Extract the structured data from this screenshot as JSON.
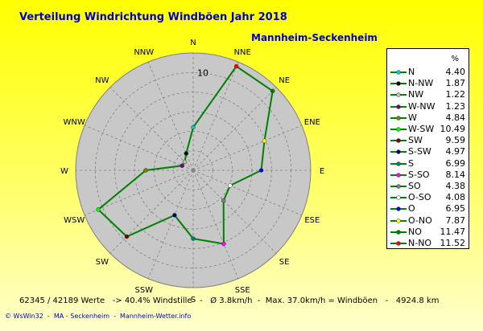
{
  "chart_data": {
    "type": "radar",
    "title": "Verteilung Windrichtung Windböen  Jahr 2018",
    "subtitle": "Mannheim-Seckenheim",
    "radial_max": 12,
    "radial_ticks": [
      10
    ],
    "radial_tick_labels": [
      "10"
    ],
    "grid": true,
    "legend_position": "right",
    "legend_unit": "%",
    "directions": [
      "N",
      "NNE",
      "NE",
      "ENE",
      "E",
      "ESE",
      "SE",
      "SSE",
      "S",
      "SSW",
      "SW",
      "WSW",
      "W",
      "WNW",
      "NW",
      "NNW"
    ],
    "series": [
      {
        "name": "Windböen",
        "color": "#008000",
        "values": [
          4.4,
          11.52,
          11.47,
          7.87,
          6.95,
          4.08,
          4.38,
          8.14,
          6.99,
          4.97,
          9.59,
          10.49,
          4.84,
          1.23,
          1.22,
          1.87
        ]
      }
    ],
    "legend": [
      {
        "label": "N",
        "value": "4.40",
        "color": "#00cccc"
      },
      {
        "label": "N-NW",
        "value": "1.87",
        "color": "#000000"
      },
      {
        "label": "NW",
        "value": "1.22",
        "color": "#bbbbbb"
      },
      {
        "label": "W-NW",
        "value": "1.23",
        "color": "#800080"
      },
      {
        "label": "W",
        "value": "4.84",
        "color": "#808000"
      },
      {
        "label": "W-SW",
        "value": "10.49",
        "color": "#00ff00"
      },
      {
        "label": "SW",
        "value": "9.59",
        "color": "#800000"
      },
      {
        "label": "S-SW",
        "value": "4.97",
        "color": "#000080"
      },
      {
        "label": "S",
        "value": "6.99",
        "color": "#008080"
      },
      {
        "label": "S-SO",
        "value": "8.14",
        "color": "#ff00ff"
      },
      {
        "label": "SO",
        "value": "4.38",
        "color": "#808080"
      },
      {
        "label": "O-SO",
        "value": "4.08",
        "color": "#ffffff"
      },
      {
        "label": "O",
        "value": "6.95",
        "color": "#0000ff"
      },
      {
        "label": "O-NO",
        "value": "7.87",
        "color": "#ffff00"
      },
      {
        "label": "NO",
        "value": "11.47",
        "color": "#008000"
      },
      {
        "label": "N-NO",
        "value": "11.52",
        "color": "#ff0000"
      }
    ],
    "marker_colors": [
      "#00cccc",
      "#ff0000",
      "#008000",
      "#ffff00",
      "#0000ff",
      "#ffffff",
      "#808080",
      "#ff00ff",
      "#008080",
      "#000080",
      "#800000",
      "#00ff00",
      "#808000",
      "#800080",
      "#bbbbbb",
      "#000000"
    ]
  },
  "footer": {
    "stats": "62345 / 42189 Werte   -> 40.4% Windstille   -   Ø 3.8km/h  -  Max. 37.0km/h = Windböen   -   4924.8 km",
    "credits": "© WsWin32  -  MA - Seckenheim  -  Mannheim-Wetter.info"
  }
}
